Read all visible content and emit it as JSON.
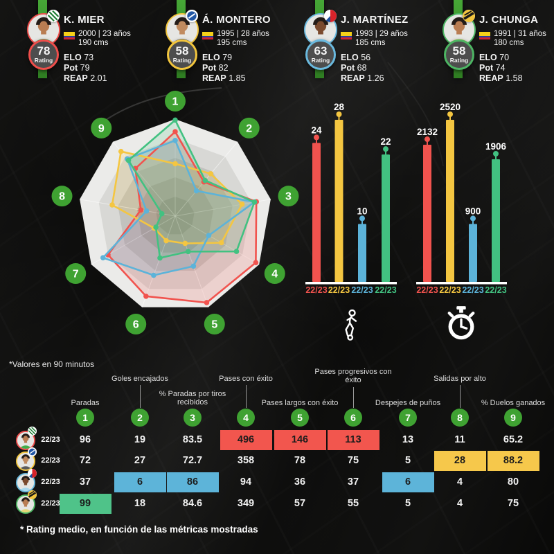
{
  "labels": {
    "rating": "Rating",
    "elo": "ELO",
    "pot": "Pot",
    "reap": "REAP"
  },
  "notes": {
    "top": "*Valores en 90 minutos",
    "bottom": "* Rating medio, en función de las métricas mostradas"
  },
  "colors": {
    "badge_green": "#3fa232",
    "ribbon_green": "#3e9a2e",
    "series_red": "#f1534e",
    "series_yellow": "#f4c641",
    "series_blue": "#5cb3d9",
    "series_green": "#42c181",
    "highlight_text": "#1c1c1c"
  },
  "players": [
    {
      "name": "K. MIER",
      "born": "2000 | 23 años",
      "height": "190 cms",
      "rating": "78",
      "elo": "73",
      "pot": "79",
      "reap": "2.01",
      "color": "#ef4e4b",
      "shirt": "#3fae4a",
      "skin": "#b97d52",
      "club_badge": "atletico-nacional",
      "flag": "colombia"
    },
    {
      "name": "Á. MONTERO",
      "born": "1995 | 28 años",
      "height": "195 cms",
      "rating": "58",
      "elo": "79",
      "pot": "82",
      "reap": "1.85",
      "color": "#f2c53d",
      "shirt": "#5a5a5a",
      "skin": "#c08a5e",
      "club_badge": "millonarios",
      "flag": "colombia"
    },
    {
      "name": "J. MARTÍNEZ",
      "born": "1993 | 29 años",
      "height": "185 cms",
      "rating": "63",
      "elo": "56",
      "pot": "68",
      "reap": "1.26",
      "color": "#6ab9de",
      "shirt": "#a9d9ef",
      "skin": "#7a4a2e",
      "club_badge": "junior",
      "flag": "colombia"
    },
    {
      "name": "J. CHUNGA",
      "born": "1991 | 31 años",
      "height": "180 cms",
      "rating": "58",
      "elo": "70",
      "pot": "74",
      "reap": "1.58",
      "color": "#4db563",
      "shirt": "#e5d978",
      "skin": "#b97d52",
      "club_badge": "alianza",
      "flag": "colombia"
    }
  ],
  "chart_data": [
    {
      "type": "radar",
      "axis_labels": [
        "1",
        "2",
        "3",
        "4",
        "5",
        "6",
        "7",
        "8",
        "9"
      ],
      "scale": [
        0,
        1
      ],
      "legend_position": "none",
      "series": [
        {
          "name": "K. Mier",
          "color": "#f1534e",
          "values": [
            0.87,
            0.46,
            0.85,
            0.96,
            0.95,
            0.88,
            0.8,
            0.36,
            0.64
          ]
        },
        {
          "name": "Á. Montero",
          "color": "#f4c641",
          "values": [
            0.54,
            0.57,
            0.7,
            0.55,
            0.3,
            0.27,
            0.25,
            0.66,
            0.87
          ]
        },
        {
          "name": "J. Martínez",
          "color": "#5cb3d9",
          "values": [
            0.78,
            0.34,
            0.83,
            0.4,
            0.55,
            0.65,
            0.86,
            0.3,
            0.77
          ]
        },
        {
          "name": "J. Chunga",
          "color": "#42c181",
          "values": [
            0.99,
            0.48,
            0.83,
            0.73,
            0.39,
            0.46,
            0.23,
            0.14,
            0.75
          ]
        }
      ]
    },
    {
      "type": "bar",
      "icon": "soccer-player",
      "players": [
        "K. Mier",
        "Á. Montero",
        "J. Martínez",
        "J. Chunga"
      ],
      "categories": [
        "22/23",
        "22/23",
        "22/23",
        "22/23"
      ],
      "values": [
        24,
        28,
        10,
        22
      ],
      "colors": [
        "#f1534e",
        "#f4c641",
        "#5cb3d9",
        "#42c181"
      ],
      "ylim": [
        0,
        28
      ]
    },
    {
      "type": "bar",
      "icon": "stopwatch",
      "players": [
        "K. Mier",
        "Á. Montero",
        "J. Martínez",
        "J. Chunga"
      ],
      "categories": [
        "22/23",
        "22/23",
        "22/23",
        "22/23"
      ],
      "values": [
        2132,
        2520,
        900,
        1906
      ],
      "colors": [
        "#f1534e",
        "#f4c641",
        "#5cb3d9",
        "#42c181"
      ],
      "ylim": [
        0,
        2520
      ]
    },
    {
      "type": "table",
      "columns": [
        {
          "num": "1",
          "label": "Paradas"
        },
        {
          "num": "2",
          "label": "Goles encajados"
        },
        {
          "num": "3",
          "label": "% Paradas por tiros recibidos"
        },
        {
          "num": "4",
          "label": "Pases con éxito"
        },
        {
          "num": "5",
          "label": "Pases largos con éxito"
        },
        {
          "num": "6",
          "label": "Pases progresivos con éxito"
        },
        {
          "num": "7",
          "label": "Despejes de puños"
        },
        {
          "num": "8",
          "label": "Salidas por alto"
        },
        {
          "num": "9",
          "label": "% Duelos ganados"
        }
      ],
      "rows": [
        {
          "player": "K. Mier",
          "season": "22/23",
          "color": "#ef4e4b",
          "values": [
            "96",
            "19",
            "83.5",
            "496",
            "146",
            "113",
            "13",
            "11",
            "65.2"
          ],
          "highlight_cols": [
            4,
            5,
            6
          ],
          "highlight_color": "#f2564e"
        },
        {
          "player": "Á. Montero",
          "season": "22/23",
          "color": "#f2c53d",
          "values": [
            "72",
            "27",
            "72.7",
            "358",
            "78",
            "75",
            "5",
            "28",
            "88.2"
          ],
          "highlight_cols": [
            8,
            9
          ],
          "highlight_color": "#f6c84b"
        },
        {
          "player": "J. Martínez",
          "season": "22/23",
          "color": "#6ab9de",
          "values": [
            "37",
            "6",
            "86",
            "94",
            "36",
            "37",
            "6",
            "4",
            "80"
          ],
          "highlight_cols": [
            2,
            3,
            7
          ],
          "highlight_color": "#5db4d9"
        },
        {
          "player": "J. Chunga",
          "season": "22/23",
          "color": "#4db563",
          "values": [
            "99",
            "18",
            "84.6",
            "349",
            "57",
            "55",
            "5",
            "4",
            "75"
          ],
          "highlight_cols": [
            1
          ],
          "highlight_color": "#4fc389"
        }
      ]
    }
  ]
}
